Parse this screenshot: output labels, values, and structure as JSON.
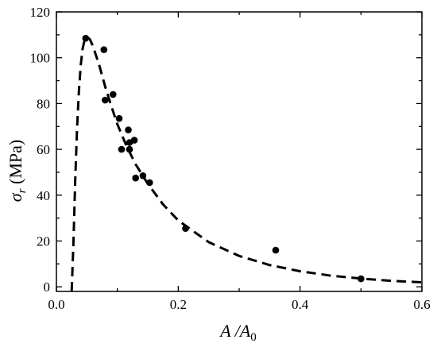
{
  "chart_data": {
    "type": "scatter",
    "title": "",
    "xlabel": {
      "main": "A /A",
      "sub": "0"
    },
    "ylabel": {
      "main": "σ",
      "sub": "r",
      "unit": " (MPa)"
    },
    "xlim": [
      0.0,
      0.6
    ],
    "ylim": [
      -2,
      120
    ],
    "xticks": [
      0.0,
      0.2,
      0.4,
      0.6
    ],
    "yticks": [
      0,
      20,
      40,
      60,
      80,
      100,
      120
    ],
    "xtick_labels": [
      "0.0",
      "0.2",
      "0.4",
      "0.6"
    ],
    "ytick_labels": [
      "0",
      "20",
      "40",
      "60",
      "80",
      "100",
      "120"
    ],
    "grid": false,
    "series": [
      {
        "kind": "scatter",
        "marker": "filled-circle",
        "color": "#000000",
        "x": [
          0.048,
          0.078,
          0.08,
          0.093,
          0.103,
          0.107,
          0.118,
          0.12,
          0.12,
          0.128,
          0.13,
          0.142,
          0.153,
          0.212,
          0.36,
          0.5
        ],
        "y": [
          108.5,
          103.5,
          81.5,
          84.0,
          73.5,
          60.0,
          68.5,
          63.0,
          60.0,
          64.0,
          47.5,
          48.5,
          45.5,
          25.5,
          16.0,
          3.5
        ]
      },
      {
        "kind": "line",
        "style": "dashed",
        "color": "#000000",
        "x": [
          0.025,
          0.028,
          0.031,
          0.034,
          0.037,
          0.04,
          0.043,
          0.046,
          0.05,
          0.055,
          0.06,
          0.07,
          0.08,
          0.09,
          0.1,
          0.115,
          0.13,
          0.15,
          0.175,
          0.2,
          0.25,
          0.3,
          0.35,
          0.4,
          0.45,
          0.5,
          0.55,
          0.6
        ],
        "y": [
          -2.0,
          20.0,
          48.0,
          70.0,
          86.0,
          97.0,
          104.0,
          107.5,
          109.0,
          108.0,
          105.0,
          97.0,
          87.5,
          79.0,
          71.0,
          61.5,
          53.5,
          45.0,
          36.0,
          29.0,
          19.5,
          13.5,
          9.5,
          6.8,
          4.9,
          3.6,
          2.6,
          2.0
        ]
      }
    ]
  }
}
